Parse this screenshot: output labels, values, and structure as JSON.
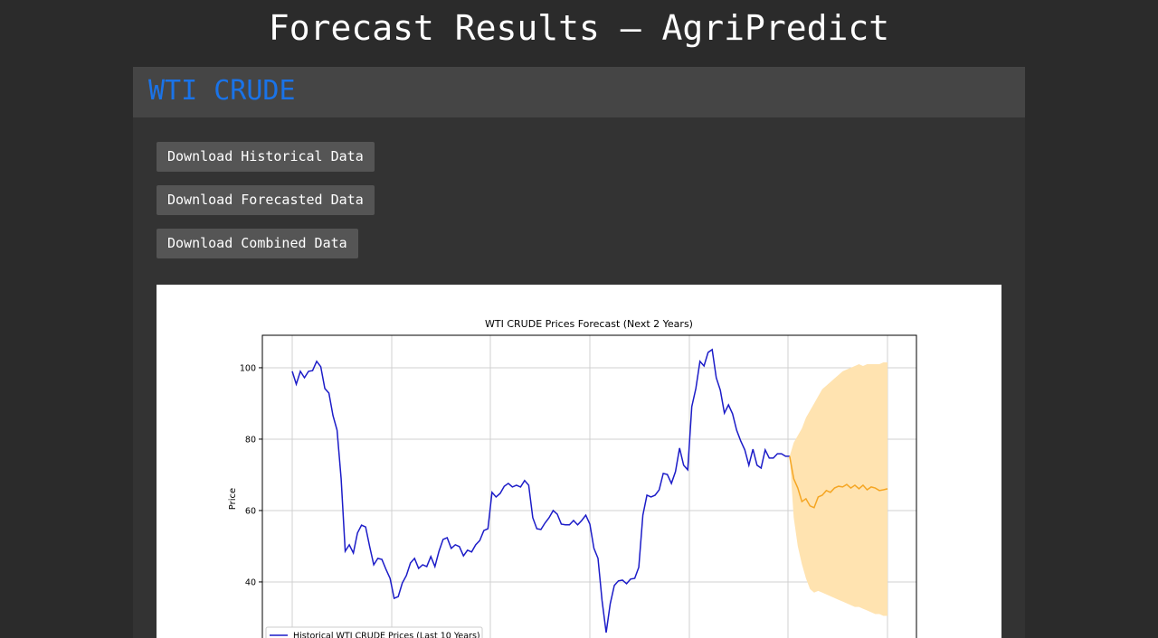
{
  "page": {
    "title": "Forecast Results – AgriPredict",
    "section": "WTI CRUDE",
    "buttons": [
      "Download Historical Data",
      "Download Forecasted Data",
      "Download Combined Data"
    ]
  },
  "chart_data": {
    "type": "line",
    "title": "WTI CRUDE Prices Forecast (Next 2 Years)",
    "y_label": "Price",
    "categories": [
      null,
      null,
      null,
      null,
      null,
      null,
      null,
      null,
      null,
      null,
      null,
      null,
      null,
      null,
      null,
      null,
      null,
      null,
      null,
      null,
      null,
      null,
      null,
      null,
      null,
      null,
      null,
      null,
      null,
      null,
      null,
      null,
      null,
      null,
      null,
      null,
      null,
      null,
      null,
      null,
      null,
      null,
      null,
      null,
      null,
      null,
      null,
      null,
      null,
      null,
      null,
      null,
      null,
      null,
      null,
      null,
      null,
      null,
      null,
      null,
      null,
      null,
      null,
      null,
      null,
      null,
      null,
      null,
      null,
      null,
      null,
      null,
      null,
      null,
      null,
      null,
      null,
      null,
      null,
      null,
      null,
      null,
      null,
      null,
      null,
      null,
      null,
      null,
      null,
      null,
      null,
      null,
      null,
      null,
      null,
      null,
      null,
      null,
      null,
      null,
      null,
      null,
      null,
      null,
      null,
      null,
      null,
      null,
      null,
      null,
      null,
      null,
      null,
      null,
      null,
      null,
      null,
      null,
      null,
      null,
      null,
      null,
      null,
      null,
      null,
      null,
      null,
      null,
      null,
      null,
      null,
      null,
      null,
      null,
      null,
      null,
      null,
      null,
      null,
      null,
      null,
      null,
      null,
      null,
      null,
      null,
      null
    ],
    "series": [
      {
        "name": "Historical WTI CRUDE Prices (Last 10 Years)",
        "color": "#1c1cc8",
        "values": [
          99,
          95.4,
          99,
          97.2,
          99,
          99.2,
          101.8,
          100.3,
          94.2,
          92.9,
          86.6,
          82.5,
          68.9,
          48.6,
          50.4,
          48.1,
          53.7,
          55.9,
          55.4,
          49.9,
          44.8,
          46.6,
          46.3,
          43.5,
          41,
          35.4,
          35.9,
          39.7,
          41.8,
          45.3,
          46.6,
          43.8,
          44.8,
          44.3,
          47.1,
          44.3,
          48.6,
          51.9,
          52.4,
          49.4,
          50.4,
          49.9,
          47.3,
          48.9,
          48.4,
          50.4,
          51.6,
          54.4,
          54.9,
          65.1,
          63.8,
          64.8,
          66.8,
          67.6,
          66.6,
          67.1,
          66.6,
          68.4,
          67.1,
          58,
          54.9,
          54.7,
          56.5,
          58,
          60,
          59,
          56.2,
          56,
          56,
          57.2,
          56,
          57.2,
          58.7,
          56.2,
          49.4,
          46.6,
          34.7,
          25.8,
          33.9,
          39,
          40.3,
          40.5,
          39.5,
          40.8,
          41,
          44.1,
          58.7,
          64.3,
          63.8,
          64.3,
          65.8,
          70.4,
          70.1,
          67.6,
          70.9,
          77.5,
          72.7,
          71.4,
          89.1,
          94.2,
          101.8,
          100.5,
          104.3,
          105.1,
          97.2,
          93.7,
          87.3,
          89.6,
          87.1,
          82.5,
          79.5,
          77,
          72.7,
          77.2,
          72.7,
          71.9,
          77,
          74.7,
          74.7,
          75.9,
          75.9,
          75.2,
          75.2,
          null,
          null,
          null,
          null,
          null,
          null,
          null,
          null,
          null,
          null,
          null,
          null,
          null,
          null,
          null,
          null,
          null,
          null,
          null,
          null,
          null,
          null,
          null,
          null
        ]
      },
      {
        "color": "#f5a623",
        "values": [
          null,
          null,
          null,
          null,
          null,
          null,
          null,
          null,
          null,
          null,
          null,
          null,
          null,
          null,
          null,
          null,
          null,
          null,
          null,
          null,
          null,
          null,
          null,
          null,
          null,
          null,
          null,
          null,
          null,
          null,
          null,
          null,
          null,
          null,
          null,
          null,
          null,
          null,
          null,
          null,
          null,
          null,
          null,
          null,
          null,
          null,
          null,
          null,
          null,
          null,
          null,
          null,
          null,
          null,
          null,
          null,
          null,
          null,
          null,
          null,
          null,
          null,
          null,
          null,
          null,
          null,
          null,
          null,
          null,
          null,
          null,
          null,
          null,
          null,
          null,
          null,
          null,
          null,
          null,
          null,
          null,
          null,
          null,
          null,
          null,
          null,
          null,
          null,
          null,
          null,
          null,
          null,
          null,
          null,
          null,
          null,
          null,
          null,
          null,
          null,
          null,
          null,
          null,
          null,
          null,
          null,
          null,
          null,
          null,
          null,
          null,
          null,
          null,
          null,
          null,
          null,
          null,
          null,
          null,
          null,
          null,
          null,
          75.2,
          68.9,
          66.3,
          62.5,
          63.3,
          61.3,
          60.8,
          63.8,
          64.3,
          65.6,
          65.1,
          66.3,
          66.8,
          66.6,
          67.3,
          66.3,
          67.1,
          66.1,
          67.1,
          65.8,
          66.6,
          66.3,
          65.6,
          65.8,
          66.1
        ]
      }
    ],
    "band": {
      "color": "#ffe3b0",
      "upper": [
        null,
        null,
        null,
        null,
        null,
        null,
        null,
        null,
        null,
        null,
        null,
        null,
        null,
        null,
        null,
        null,
        null,
        null,
        null,
        null,
        null,
        null,
        null,
        null,
        null,
        null,
        null,
        null,
        null,
        null,
        null,
        null,
        null,
        null,
        null,
        null,
        null,
        null,
        null,
        null,
        null,
        null,
        null,
        null,
        null,
        null,
        null,
        null,
        null,
        null,
        null,
        null,
        null,
        null,
        null,
        null,
        null,
        null,
        null,
        null,
        null,
        null,
        null,
        null,
        null,
        null,
        null,
        null,
        null,
        null,
        null,
        null,
        null,
        null,
        null,
        null,
        null,
        null,
        null,
        null,
        null,
        null,
        null,
        null,
        null,
        null,
        null,
        null,
        null,
        null,
        null,
        null,
        null,
        null,
        null,
        null,
        null,
        null,
        null,
        null,
        null,
        null,
        null,
        null,
        null,
        null,
        null,
        null,
        null,
        null,
        null,
        null,
        null,
        null,
        null,
        null,
        null,
        null,
        null,
        null,
        null,
        null,
        75.2,
        79,
        81,
        83,
        86,
        88,
        90,
        92,
        94,
        95,
        96,
        97,
        98,
        99,
        99.5,
        100,
        100.5,
        101,
        100.5,
        101,
        101,
        101,
        101,
        101.5,
        101.5
      ],
      "lower": [
        null,
        null,
        null,
        null,
        null,
        null,
        null,
        null,
        null,
        null,
        null,
        null,
        null,
        null,
        null,
        null,
        null,
        null,
        null,
        null,
        null,
        null,
        null,
        null,
        null,
        null,
        null,
        null,
        null,
        null,
        null,
        null,
        null,
        null,
        null,
        null,
        null,
        null,
        null,
        null,
        null,
        null,
        null,
        null,
        null,
        null,
        null,
        null,
        null,
        null,
        null,
        null,
        null,
        null,
        null,
        null,
        null,
        null,
        null,
        null,
        null,
        null,
        null,
        null,
        null,
        null,
        null,
        null,
        null,
        null,
        null,
        null,
        null,
        null,
        null,
        null,
        null,
        null,
        null,
        null,
        null,
        null,
        null,
        null,
        null,
        null,
        null,
        null,
        null,
        null,
        null,
        null,
        null,
        null,
        null,
        null,
        null,
        null,
        null,
        null,
        null,
        null,
        null,
        null,
        null,
        null,
        null,
        null,
        null,
        null,
        null,
        null,
        null,
        null,
        null,
        null,
        null,
        null,
        null,
        null,
        null,
        null,
        75.2,
        58,
        50,
        45,
        41,
        38,
        37,
        37.5,
        37,
        36.5,
        36,
        35.5,
        35,
        34.5,
        34,
        33.5,
        33,
        33,
        32.5,
        32,
        31.5,
        31,
        31,
        30.5,
        30.5
      ]
    },
    "ylim": [
      20,
      109.1
    ],
    "yticks": [
      40,
      60,
      80,
      100
    ],
    "grid": true
  }
}
